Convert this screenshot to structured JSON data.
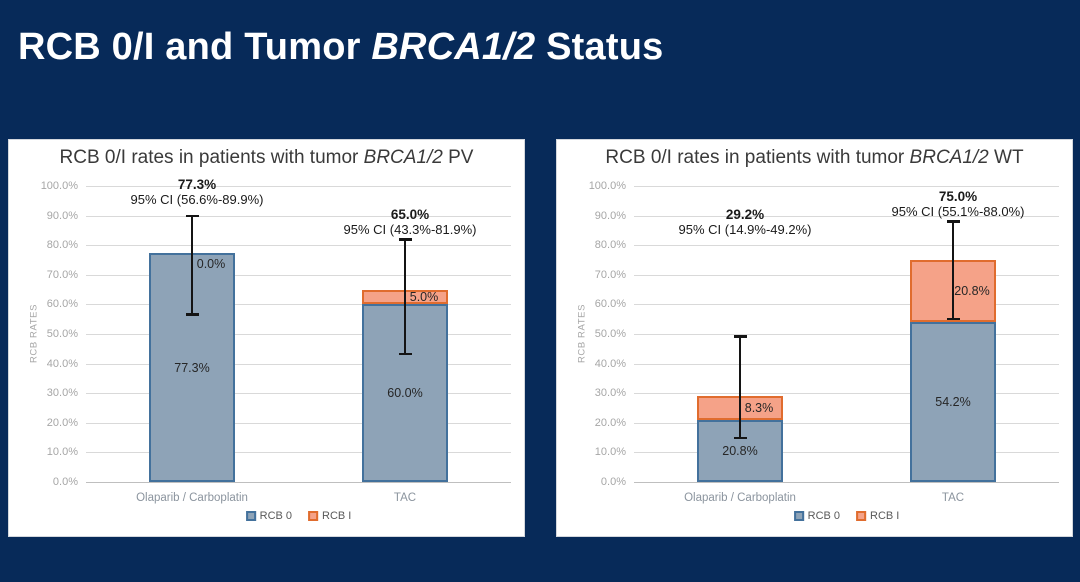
{
  "slide": {
    "title_prefix": "RCB 0/I and Tumor ",
    "title_italic": "BRCA1/2",
    "title_suffix": " Status",
    "background_color": "#072a59"
  },
  "colors": {
    "rcb0_fill": "#8ea3b7",
    "rcb0_border": "#43719c",
    "rcb1_fill": "#f5a288",
    "rcb1_border": "#e06c2e",
    "error_bar": "#141414",
    "gridline": "#d9d9d9",
    "axis_text": "#a6a6a6",
    "category_text": "#8b949e"
  },
  "chart_data": [
    {
      "type": "bar",
      "stacked": true,
      "title_prefix": "RCB 0/I rates in patients with tumor ",
      "title_italic": "BRCA1/2",
      "title_suffix": " PV",
      "ylabel": "RCB RATES",
      "ylim": [
        0,
        100
      ],
      "y_tick_step": 10,
      "y_tick_labels": [
        "0.0%",
        "10.0%",
        "20.0%",
        "30.0%",
        "40.0%",
        "50.0%",
        "60.0%",
        "70.0%",
        "80.0%",
        "90.0%",
        "100.0%"
      ],
      "grid": true,
      "legend_position": "bottom",
      "categories": [
        "Olaparib / Carboplatin",
        "TAC"
      ],
      "series": [
        {
          "name": "RCB 0",
          "values": [
            77.3,
            60.0
          ],
          "labels": [
            "77.3%",
            "60.0%"
          ]
        },
        {
          "name": "RCB I",
          "values": [
            0.0,
            5.0
          ],
          "labels": [
            "0.0%",
            "5.0%"
          ]
        }
      ],
      "totals": [
        {
          "label": "77.3%",
          "ci_label": "95% CI (56.6%-89.9%)",
          "ci_low": 56.6,
          "ci_high": 89.9,
          "annot_top_pct": 103
        },
        {
          "label": "65.0%",
          "ci_label": "95% CI (43.3%-81.9%)",
          "ci_low": 43.3,
          "ci_high": 81.9,
          "annot_top_pct": 93
        }
      ]
    },
    {
      "type": "bar",
      "stacked": true,
      "title_prefix": "RCB 0/I rates in patients with tumor ",
      "title_italic": "BRCA1/2",
      "title_suffix": " WT",
      "ylabel": "RCB RATES",
      "ylim": [
        0,
        100
      ],
      "y_tick_step": 10,
      "y_tick_labels": [
        "0.0%",
        "10.0%",
        "20.0%",
        "30.0%",
        "40.0%",
        "50.0%",
        "60.0%",
        "70.0%",
        "80.0%",
        "90.0%",
        "100.0%"
      ],
      "grid": true,
      "legend_position": "bottom",
      "categories": [
        "Olaparib / Carboplatin",
        "TAC"
      ],
      "series": [
        {
          "name": "RCB 0",
          "values": [
            20.8,
            54.2
          ],
          "labels": [
            "20.8%",
            "54.2%"
          ]
        },
        {
          "name": "RCB I",
          "values": [
            8.3,
            20.8
          ],
          "labels": [
            "8.3%",
            "20.8%"
          ]
        }
      ],
      "totals": [
        {
          "label": "29.2%",
          "ci_label": "95% CI (14.9%-49.2%)",
          "ci_low": 14.9,
          "ci_high": 49.2,
          "annot_top_pct": 93
        },
        {
          "label": "75.0%",
          "ci_label": "95% CI (55.1%-88.0%)",
          "ci_low": 55.1,
          "ci_high": 88.0,
          "annot_top_pct": 99
        }
      ]
    }
  ]
}
